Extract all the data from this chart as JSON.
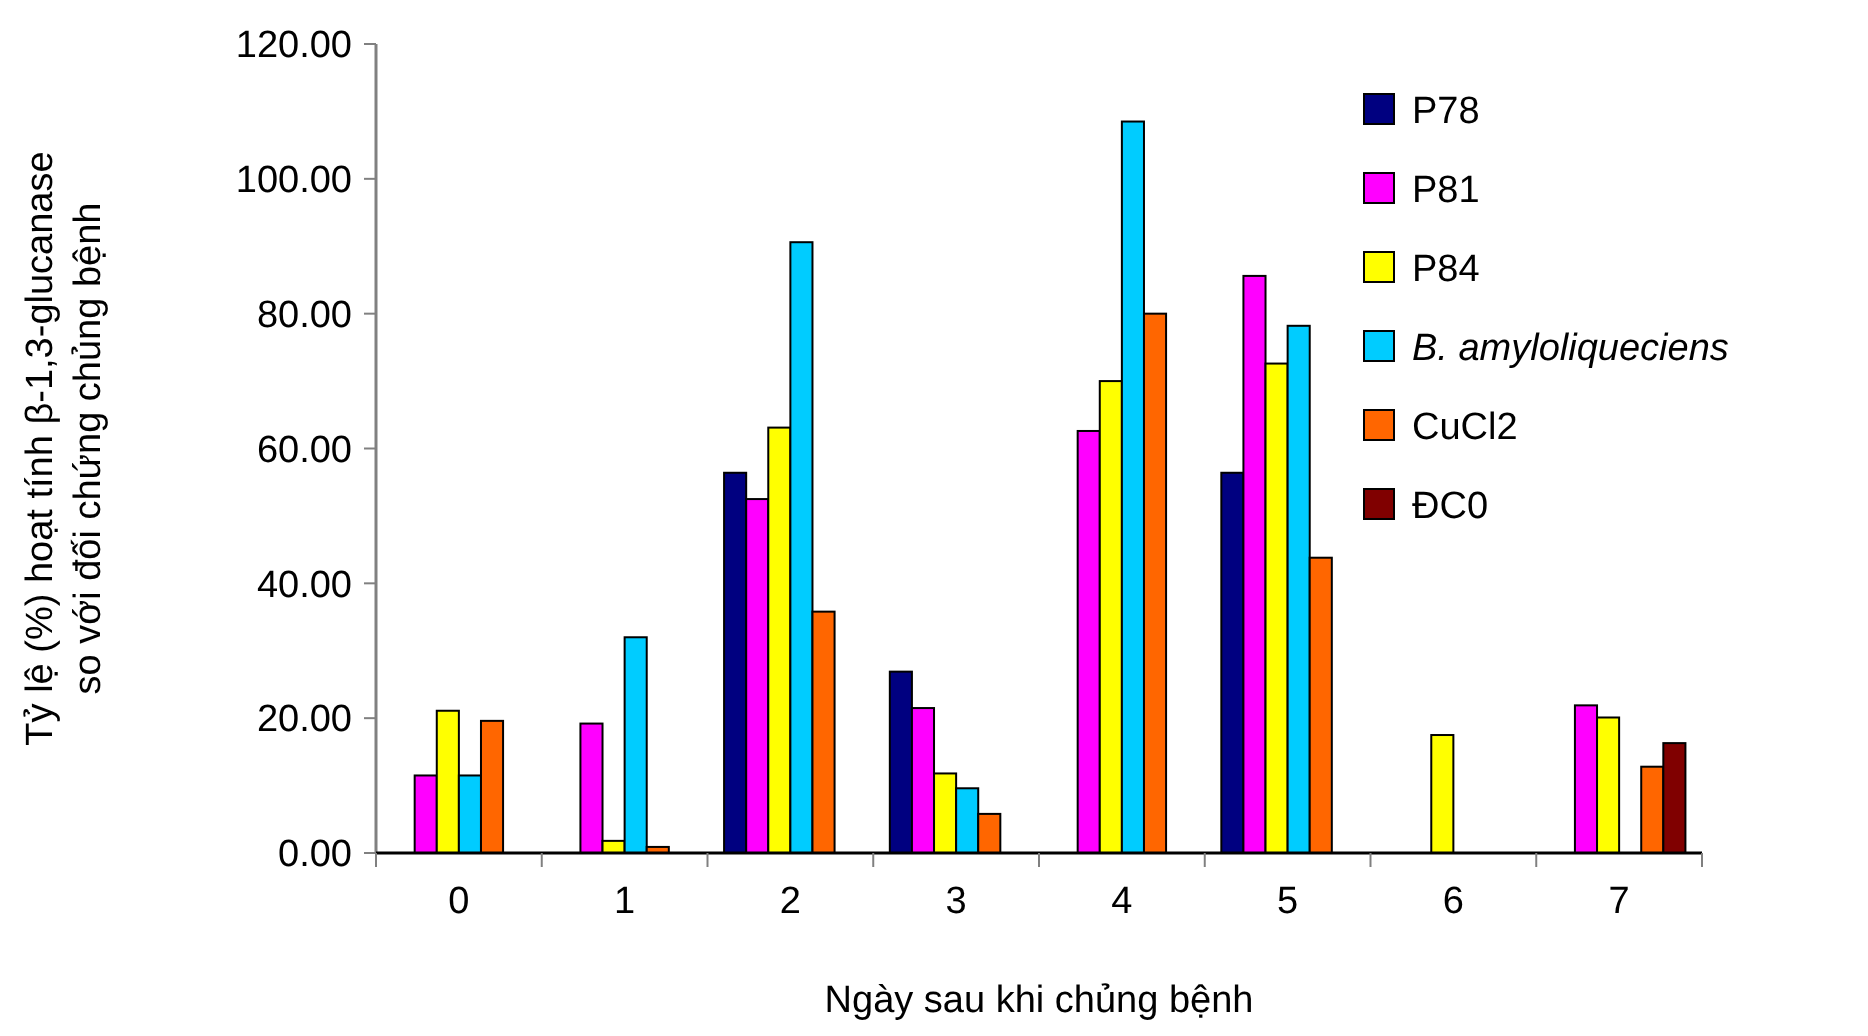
{
  "chart_data": {
    "type": "bar",
    "ylabel": "Tỷ lệ (%) hoạt tính β-1,3-glucanase\nso với đối chứng chủng bệnh",
    "xlabel": "Ngày sau khi chủng bệnh",
    "categories": [
      "0",
      "1",
      "2",
      "3",
      "4",
      "5",
      "6",
      "7"
    ],
    "series": [
      {
        "name": "P78",
        "color": "#000080",
        "values": [
          null,
          null,
          56.4,
          26.9,
          null,
          56.4,
          null,
          null
        ]
      },
      {
        "name": "P81",
        "color": "#ff00ff",
        "values": [
          11.5,
          19.2,
          52.5,
          21.5,
          62.6,
          85.6,
          null,
          21.9
        ]
      },
      {
        "name": "P84",
        "color": "#ffff00",
        "values": [
          21.1,
          1.8,
          63.1,
          11.8,
          70.0,
          72.6,
          17.5,
          20.1
        ]
      },
      {
        "name": "B. amyloliqueciens",
        "color": "#00ccff",
        "values": [
          11.5,
          32.0,
          90.6,
          9.6,
          108.5,
          78.2,
          null,
          null
        ]
      },
      {
        "name": "CuCl2",
        "color": "#ff6600",
        "values": [
          19.6,
          0.9,
          35.8,
          5.8,
          80.0,
          43.8,
          null,
          12.8
        ]
      },
      {
        "name": "ĐC0",
        "color": "#800000",
        "values": [
          null,
          null,
          null,
          null,
          null,
          null,
          null,
          16.3
        ]
      }
    ],
    "ylim": [
      0,
      120
    ],
    "yticks": [
      {
        "value": 0,
        "label": "0.00"
      },
      {
        "value": 20,
        "label": "20.00"
      },
      {
        "value": 40,
        "label": "40.00"
      },
      {
        "value": 60,
        "label": "60.00"
      },
      {
        "value": 80,
        "label": "80.00"
      },
      {
        "value": 100,
        "label": "100.00"
      },
      {
        "value": 120,
        "label": "120.00"
      }
    ],
    "grid": false,
    "legend": "right"
  }
}
